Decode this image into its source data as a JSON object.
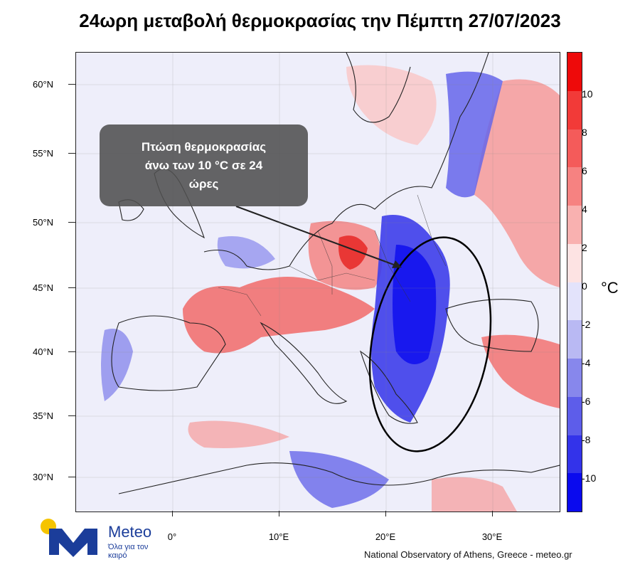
{
  "title": "24ωρη μεταβολή θερμοκρασίας την Πέμπτη 27/07/2023",
  "callout": {
    "line1": "Πτώση θερμοκρασίας",
    "line2": "άνω των 10 °C σε 24",
    "line3": "ώρες"
  },
  "axes": {
    "lat_labels": [
      "60°N",
      "55°N",
      "50°N",
      "45°N",
      "40°N",
      "35°N",
      "30°N"
    ],
    "lon_labels": [
      "0°",
      "10°E",
      "20°E",
      "30°E"
    ]
  },
  "colorbar": {
    "unit": "°C",
    "tick_labels": [
      "10",
      "8",
      "6",
      "4",
      "2",
      "0",
      "-2",
      "-4",
      "-6",
      "-8",
      "-10"
    ],
    "colors": [
      "#ee0a0a",
      "#f23a38",
      "#f45b5a",
      "#f68281",
      "#f9b1b0",
      "#fde3e3",
      "#e3e3fb",
      "#b9b9f3",
      "#8787ec",
      "#5d5dea",
      "#3333ea",
      "#0a0aee"
    ]
  },
  "brand": {
    "name": "Meteo",
    "tagline": "Όλα για τον καιρό",
    "logo_icons": [
      "sun-icon",
      "m-letter-icon"
    ]
  },
  "credit": "National Observatory of Athens, Greece - meteo.gr"
}
